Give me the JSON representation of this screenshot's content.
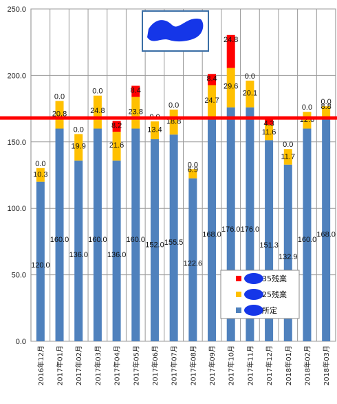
{
  "chart_data": {
    "type": "bar",
    "stacked": true,
    "title": "",
    "xlabel": "",
    "ylabel": "",
    "ylim": [
      0,
      250
    ],
    "yticks": [
      "0.0",
      "50.0",
      "100.0",
      "150.0",
      "200.0",
      "250.0"
    ],
    "grid": true,
    "legend_position": "bottom-right",
    "categories": [
      "2016年12月",
      "2017年01月",
      "2017年02月",
      "2017年03月",
      "2017年04月",
      "2017年05月",
      "2017年06月",
      "2017年07月",
      "2017年08月",
      "2017年09月",
      "2017年10月",
      "2017年11月",
      "2017年12月",
      "2018年01月",
      "2018年02月",
      "2018年03月"
    ],
    "series": [
      {
        "name": "所定",
        "color": "#4f81bd",
        "values": [
          120.0,
          160.0,
          136.0,
          160.0,
          136.0,
          160.0,
          152.0,
          155.5,
          122.6,
          168.0,
          176.0,
          176.0,
          151.3,
          132.9,
          160.0,
          168.0
        ],
        "labels": [
          "120.0",
          "160.0",
          "136.0",
          "160.0",
          "136.0",
          "160.0",
          "152.0",
          "155.5",
          "122.6",
          "168.0",
          "176.0",
          "176.0",
          "151.3",
          "132.9",
          "160.0",
          "168.0"
        ]
      },
      {
        "name": "25残業",
        "color": "#ffc000",
        "values": [
          10.3,
          20.8,
          19.9,
          24.8,
          21.6,
          23.8,
          13.4,
          18.8,
          6.9,
          24.7,
          29.6,
          20.1,
          11.6,
          11.7,
          12.6,
          8.8
        ],
        "labels": [
          "10.3",
          "20.8",
          "19.9",
          "24.8",
          "21.6",
          "23.8",
          "13.4",
          "18.8",
          "6.9",
          "24.7",
          "29.6",
          "20.1",
          "11.6",
          "11.7",
          "12.6",
          "8.8"
        ]
      },
      {
        "name": "35残業",
        "color": "#ff0000",
        "values": [
          0.0,
          0.0,
          0.0,
          0.0,
          8.2,
          8.4,
          0.0,
          0.0,
          0.0,
          8.4,
          24.8,
          0.0,
          4.3,
          0.0,
          0.0,
          0.0
        ],
        "labels": [
          "0.0",
          "0.0",
          "0.0",
          "0.0",
          "8.2",
          "8.4",
          "0.0",
          "0.0",
          "0.0",
          "8.4",
          "24.8",
          "0.0",
          "4.3",
          "0.0",
          "0.0",
          "0.0"
        ]
      }
    ],
    "reference_line": {
      "value": 168,
      "color": "#ff0000"
    }
  }
}
